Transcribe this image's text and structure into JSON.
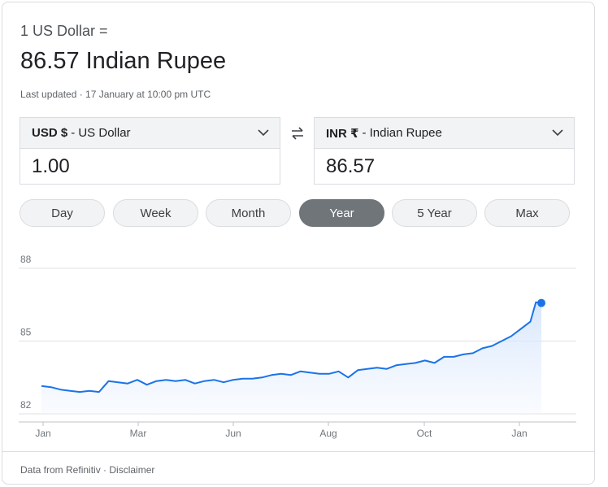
{
  "header": {
    "subtitle": "1 US Dollar =",
    "rate": "86.57 Indian Rupee",
    "updated": "Last updated · 17 January at 10:00 pm UTC"
  },
  "converter": {
    "from": {
      "code": "USD $",
      "name": " - US Dollar",
      "amount": "1.00"
    },
    "to": {
      "code": "INR ₹",
      "name": " - Indian Rupee",
      "amount": "86.57"
    }
  },
  "ranges": {
    "selected": "Year",
    "items": [
      "Day",
      "Week",
      "Month",
      "Year",
      "5 Year",
      "Max"
    ]
  },
  "chart_data": {
    "type": "area",
    "title": "",
    "xlabel": "",
    "ylabel": "",
    "x_ticks": [
      "Jan",
      "Mar",
      "Jun",
      "Aug",
      "Oct",
      "Jan"
    ],
    "y_ticks": [
      88,
      85,
      82
    ],
    "ylim": [
      82,
      88
    ],
    "grid": true,
    "line_color": "#1a73e8",
    "fill_color": "#e8f0fe",
    "series": [
      {
        "x": [
          "2024-01-18",
          "2024-01-25",
          "2024-02-01",
          "2024-02-08",
          "2024-02-15",
          "2024-02-22",
          "2024-02-29",
          "2024-03-07",
          "2024-03-14",
          "2024-03-21",
          "2024-03-28",
          "2024-04-04",
          "2024-04-11",
          "2024-04-18",
          "2024-04-25",
          "2024-05-02",
          "2024-05-09",
          "2024-05-16",
          "2024-05-23",
          "2024-05-30",
          "2024-06-06",
          "2024-06-13",
          "2024-06-20",
          "2024-06-27",
          "2024-07-04",
          "2024-07-11",
          "2024-07-18",
          "2024-07-25",
          "2024-08-01",
          "2024-08-08",
          "2024-08-15",
          "2024-08-22",
          "2024-08-29",
          "2024-09-05",
          "2024-09-12",
          "2024-09-19",
          "2024-09-26",
          "2024-10-03",
          "2024-10-10",
          "2024-10-17",
          "2024-10-24",
          "2024-10-31",
          "2024-11-07",
          "2024-11-14",
          "2024-11-21",
          "2024-11-28",
          "2024-12-05",
          "2024-12-12",
          "2024-12-19",
          "2024-12-26",
          "2025-01-02",
          "2025-01-09",
          "2025-01-13",
          "2025-01-17"
        ],
        "y": [
          83.15,
          83.1,
          83.0,
          82.95,
          82.9,
          82.95,
          82.9,
          83.35,
          83.3,
          83.25,
          83.4,
          83.2,
          83.35,
          83.4,
          83.35,
          83.4,
          83.25,
          83.35,
          83.4,
          83.3,
          83.4,
          83.45,
          83.45,
          83.5,
          83.6,
          83.65,
          83.6,
          83.75,
          83.7,
          83.65,
          83.65,
          83.75,
          83.5,
          83.8,
          83.85,
          83.9,
          83.85,
          84.0,
          84.05,
          84.1,
          84.2,
          84.1,
          84.35,
          84.35,
          84.45,
          84.5,
          84.7,
          84.8,
          85.0,
          85.2,
          85.5,
          85.8,
          86.6,
          86.57
        ]
      }
    ]
  },
  "footer": {
    "source": "Data from Refinitiv · ",
    "disclaimer": "Disclaimer"
  }
}
